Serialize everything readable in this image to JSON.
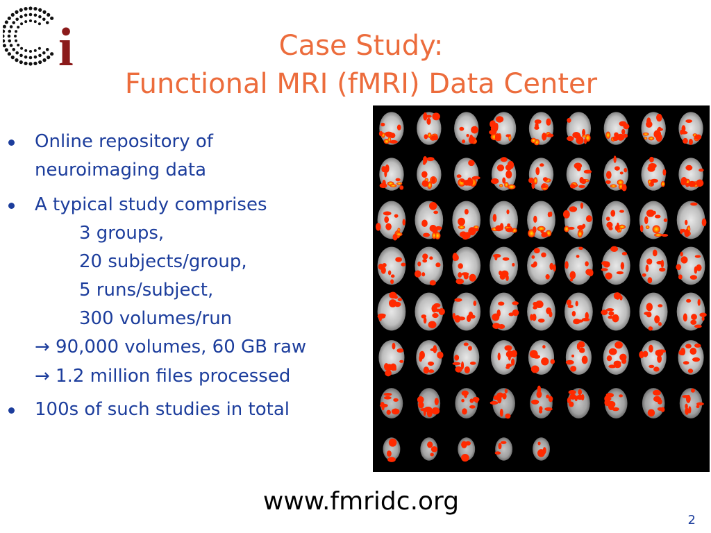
{
  "title": {
    "line1": "Case Study:",
    "line2": "Functional MRI (fMRI) Data Center"
  },
  "logo": {
    "letter": "i",
    "color": "#8b1a1a"
  },
  "bullets": {
    "b1_line1": "Online repository of",
    "b1_line2": "neuroimaging data",
    "b2_line1": "A typical study comprises",
    "b2_item1": "3 groups,",
    "b2_item2": "20 subjects/group,",
    "b2_item3": "5 runs/subject,",
    "b2_item4": "300 volumes/run",
    "arrow1": "→ 90,000 volumes, 60 GB raw",
    "arrow2": "→ 1.2 million files processed",
    "b3_line1": "100s of such studies in total"
  },
  "image": {
    "name": "fmri-brain-slice-grid",
    "rows": 8,
    "cols": 9,
    "last_row_slices": 5
  },
  "footer": {
    "url": "www.fmridc.org",
    "page_number": "2"
  },
  "colors": {
    "title": "#ec6c3c",
    "body": "#1c3d9c",
    "activation": "#ff2a00"
  }
}
